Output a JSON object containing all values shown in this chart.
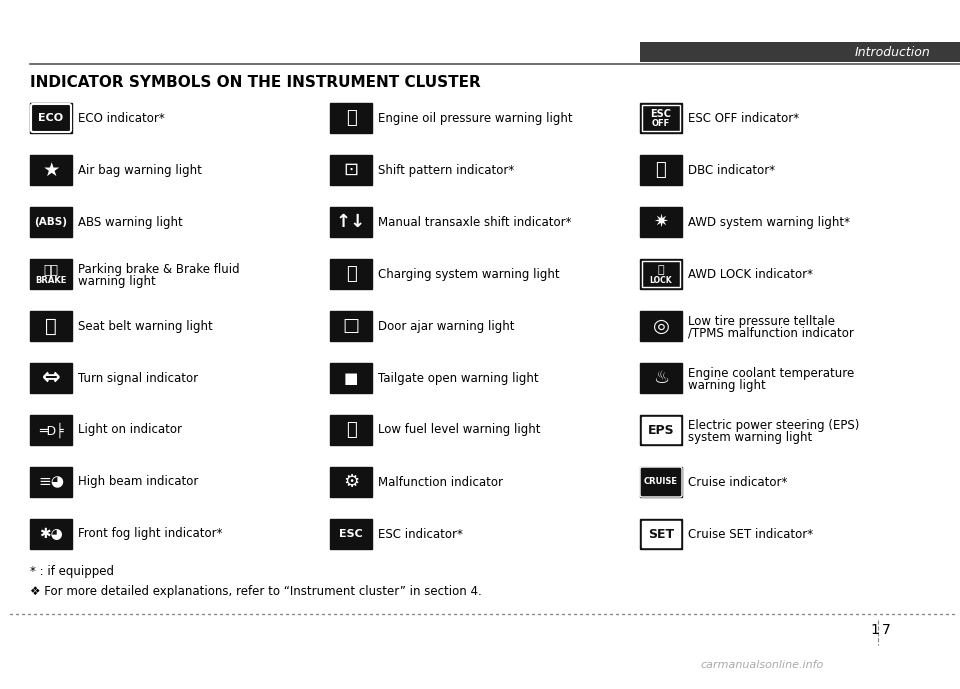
{
  "title": "INDICATOR SYMBOLS ON THE INSTRUMENT CLUSTER",
  "header_right": "Introduction",
  "page_number": "17",
  "footnote1": "* : if equipped",
  "footnote2": "❖ For more detailed explanations, refer to “Instrument cluster” in section 4.",
  "watermark": "carmanualsonline.info",
  "col1": [
    {
      "icon": "ECO",
      "text": "ECO indicator*"
    },
    {
      "icon": "AIRBAG",
      "text": "Air bag warning light"
    },
    {
      "icon": "ABS",
      "text": "ABS warning light"
    },
    {
      "icon": "BRAKE",
      "text": "Parking brake & Brake fluid\nwarning light"
    },
    {
      "icon": "SEATBELT",
      "text": "Seat belt warning light"
    },
    {
      "icon": "TURN",
      "text": "Turn signal indicator"
    },
    {
      "icon": "LIGHTON",
      "text": "Light on indicator"
    },
    {
      "icon": "HIGHBEAM",
      "text": "High beam indicator"
    },
    {
      "icon": "FOGLIGHT",
      "text": "Front fog light indicator*"
    }
  ],
  "col2": [
    {
      "icon": "OILPRESSURE",
      "text": "Engine oil pressure warning light"
    },
    {
      "icon": "SHIFT",
      "text": "Shift pattern indicator*"
    },
    {
      "icon": "MANUAL",
      "text": "Manual transaxle shift indicator*"
    },
    {
      "icon": "CHARGING",
      "text": "Charging system warning light"
    },
    {
      "icon": "DOORAJAR",
      "text": "Door ajar warning light"
    },
    {
      "icon": "TAILGATE",
      "text": "Tailgate open warning light"
    },
    {
      "icon": "LOWFUEL",
      "text": "Low fuel level warning light"
    },
    {
      "icon": "MALFUNCTION",
      "text": "Malfunction indicator"
    },
    {
      "icon": "ESC",
      "text": "ESC indicator*"
    }
  ],
  "col3": [
    {
      "icon": "ESCOFF",
      "text": "ESC OFF indicator*"
    },
    {
      "icon": "DBC",
      "text": "DBC indicator*"
    },
    {
      "icon": "AWD",
      "text": "AWD system warning light*"
    },
    {
      "icon": "AWDLOCK",
      "text": "AWD LOCK indicator*"
    },
    {
      "icon": "TIREPRESSURE",
      "text": "Low tire pressure telltale\n/TPMS malfunction indicator"
    },
    {
      "icon": "COOLANT",
      "text": "Engine coolant temperature\nwarning light"
    },
    {
      "icon": "EPS",
      "text": "Electric power steering (EPS)\nsystem warning light"
    },
    {
      "icon": "CRUISE",
      "text": "Cruise indicator*"
    },
    {
      "icon": "CRUISESET",
      "text": "Cruise SET indicator*"
    }
  ],
  "bg_color": "#ffffff",
  "text_color": "#000000",
  "icon_bg": "#111111",
  "icon_fg": "#ffffff",
  "header_bg": "#3a3a3a",
  "separator_color": "#555555",
  "dotted_line_color": "#888888"
}
